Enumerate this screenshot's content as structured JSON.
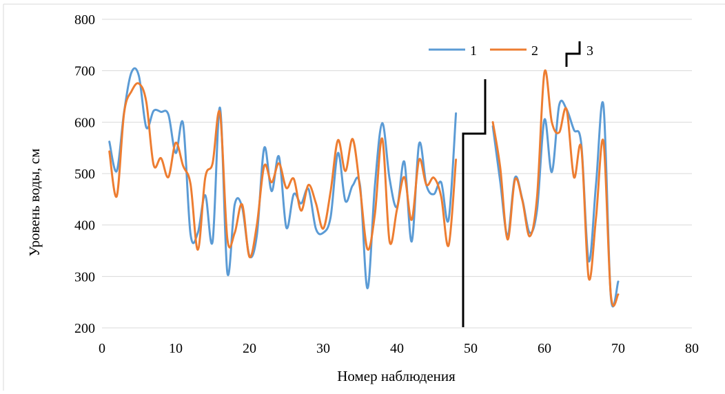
{
  "chart_data": {
    "type": "line",
    "xlabel": "Номер наблюдения",
    "ylabel": "Уровень воды, см",
    "xlim": [
      0,
      80
    ],
    "ylim": [
      200,
      800
    ],
    "x_ticks": [
      "0",
      "10",
      "20",
      "30",
      "40",
      "50",
      "60",
      "70",
      "80"
    ],
    "y_ticks": [
      "200",
      "300",
      "400",
      "500",
      "600",
      "700",
      "800"
    ],
    "grid": "horizontal",
    "legend_position": "top-right",
    "series": [
      {
        "name": "1",
        "color": "#5b9bd5",
        "segments": [
          [
            [
              1,
              562
            ],
            [
              2,
              505
            ],
            [
              3,
              620
            ],
            [
              4,
              697
            ],
            [
              5,
              690
            ],
            [
              6,
              590
            ],
            [
              7,
              622
            ],
            [
              8,
              620
            ],
            [
              9,
              615
            ],
            [
              10,
              540
            ],
            [
              11,
              597
            ],
            [
              12,
              383
            ],
            [
              13,
              385
            ],
            [
              14,
              458
            ],
            [
              15,
              368
            ],
            [
              16,
              628
            ],
            [
              17,
              307
            ],
            [
              18,
              440
            ],
            [
              19,
              435
            ],
            [
              20,
              340
            ],
            [
              21,
              380
            ],
            [
              22,
              550
            ],
            [
              23,
              466
            ],
            [
              24,
              533
            ],
            [
              25,
              395
            ],
            [
              26,
              460
            ],
            [
              27,
              442
            ],
            [
              28,
              470
            ],
            [
              29,
              393
            ],
            [
              30,
              385
            ],
            [
              31,
              415
            ],
            [
              32,
              540
            ],
            [
              33,
              447
            ],
            [
              34,
              477
            ],
            [
              35,
              476
            ],
            [
              36,
              277
            ],
            [
              37,
              475
            ],
            [
              38,
              598
            ],
            [
              39,
              490
            ],
            [
              40,
              435
            ],
            [
              41,
              523
            ],
            [
              42,
              368
            ],
            [
              43,
              558
            ],
            [
              44,
              477
            ],
            [
              45,
              460
            ],
            [
              46,
              483
            ],
            [
              47,
              410
            ],
            [
              48,
              617
            ]
          ],
          [
            [
              53,
              592
            ],
            [
              54,
              485
            ],
            [
              55,
              380
            ],
            [
              56,
              492
            ],
            [
              57,
              450
            ],
            [
              58,
              385
            ],
            [
              59,
              430
            ],
            [
              60,
              605
            ],
            [
              61,
              503
            ],
            [
              62,
              633
            ],
            [
              63,
              625
            ],
            [
              64,
              585
            ],
            [
              65,
              557
            ],
            [
              66,
              330
            ],
            [
              67,
              480
            ],
            [
              68,
              633
            ],
            [
              69,
              262
            ],
            [
              70,
              290
            ]
          ]
        ]
      },
      {
        "name": "2",
        "color": "#ed7d31",
        "segments": [
          [
            [
              1,
              543
            ],
            [
              2,
              456
            ],
            [
              3,
              618
            ],
            [
              4,
              660
            ],
            [
              5,
              675
            ],
            [
              6,
              640
            ],
            [
              7,
              517
            ],
            [
              8,
              530
            ],
            [
              9,
              493
            ],
            [
              10,
              560
            ],
            [
              11,
              515
            ],
            [
              12,
              480
            ],
            [
              13,
              352
            ],
            [
              14,
              492
            ],
            [
              15,
              520
            ],
            [
              16,
              618
            ],
            [
              17,
              373
            ],
            [
              18,
              385
            ],
            [
              19,
              440
            ],
            [
              20,
              338
            ],
            [
              21,
              400
            ],
            [
              22,
              515
            ],
            [
              23,
              483
            ],
            [
              24,
              520
            ],
            [
              25,
              472
            ],
            [
              26,
              490
            ],
            [
              27,
              428
            ],
            [
              28,
              478
            ],
            [
              29,
              443
            ],
            [
              30,
              393
            ],
            [
              31,
              465
            ],
            [
              32,
              565
            ],
            [
              33,
              505
            ],
            [
              34,
              567
            ],
            [
              35,
              470
            ],
            [
              36,
              353
            ],
            [
              37,
              420
            ],
            [
              38,
              568
            ],
            [
              39,
              368
            ],
            [
              40,
              430
            ],
            [
              41,
              493
            ],
            [
              42,
              410
            ],
            [
              43,
              527
            ],
            [
              44,
              478
            ],
            [
              45,
              492
            ],
            [
              46,
              455
            ],
            [
              47,
              360
            ],
            [
              48,
              527
            ]
          ],
          [
            [
              53,
              600
            ],
            [
              54,
              512
            ],
            [
              55,
              372
            ],
            [
              56,
              488
            ],
            [
              57,
              448
            ],
            [
              58,
              378
            ],
            [
              59,
              455
            ],
            [
              60,
              697
            ],
            [
              61,
              600
            ],
            [
              62,
              580
            ],
            [
              63,
              625
            ],
            [
              64,
              493
            ],
            [
              65,
              550
            ],
            [
              66,
              297
            ],
            [
              67,
              415
            ],
            [
              68,
              563
            ],
            [
              69,
              265
            ],
            [
              70,
              265
            ]
          ]
        ]
      }
    ],
    "annotation_3": "3"
  }
}
